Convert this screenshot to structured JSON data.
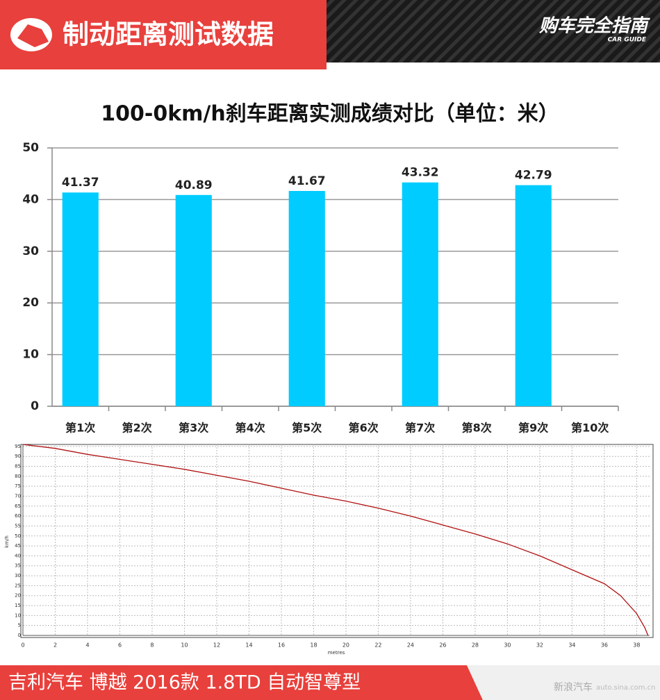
{
  "header": {
    "title": "制动距离测试数据",
    "brand": "购车完全指南",
    "brand_sub": "CAR GUIDE"
  },
  "chart_data": [
    {
      "type": "bar",
      "title": "100-0km/h刹车距离实测成绩对比（单位：米）",
      "categories": [
        "第1次",
        "第2次",
        "第3次",
        "第4次",
        "第5次",
        "第6次",
        "第7次",
        "第8次",
        "第9次",
        "第10次"
      ],
      "values": [
        41.37,
        null,
        40.89,
        null,
        41.67,
        null,
        43.32,
        null,
        42.79,
        null
      ],
      "color": "#00ccff",
      "ylim": [
        0,
        50
      ],
      "yticks": [
        0,
        10,
        20,
        30,
        40,
        50
      ],
      "grid": true
    },
    {
      "type": "line",
      "x_label": "metres",
      "y_label": "km/h",
      "color": "#b01010",
      "x": [
        0,
        2,
        4,
        6,
        8,
        10,
        12,
        14,
        16,
        18,
        20,
        22,
        24,
        26,
        28,
        30,
        32,
        34,
        36,
        37,
        38,
        38.5,
        38.7
      ],
      "y": [
        96,
        94,
        91,
        88.5,
        86,
        83.5,
        80.5,
        77.5,
        74,
        70.5,
        67.5,
        64,
        60,
        55.5,
        51,
        46,
        40,
        33,
        26,
        20,
        11,
        4,
        0
      ],
      "xlim": [
        0,
        38.8
      ],
      "xticks": [
        0,
        2,
        4,
        6,
        8,
        10,
        12,
        14,
        16,
        18,
        20,
        22,
        24,
        26,
        28,
        30,
        32,
        34,
        36,
        38
      ],
      "ylim": [
        0,
        96
      ],
      "yticks": [
        0,
        5,
        10,
        15,
        20,
        25,
        30,
        35,
        40,
        45,
        50,
        55,
        60,
        65,
        70,
        75,
        80,
        85,
        90,
        95
      ],
      "grid": true
    }
  ],
  "footer": {
    "model": "吉利汽车 博越 2016款 1.8TD 自动智尊型",
    "source": "新浪汽车",
    "site": "auto.sina.com.cn"
  }
}
